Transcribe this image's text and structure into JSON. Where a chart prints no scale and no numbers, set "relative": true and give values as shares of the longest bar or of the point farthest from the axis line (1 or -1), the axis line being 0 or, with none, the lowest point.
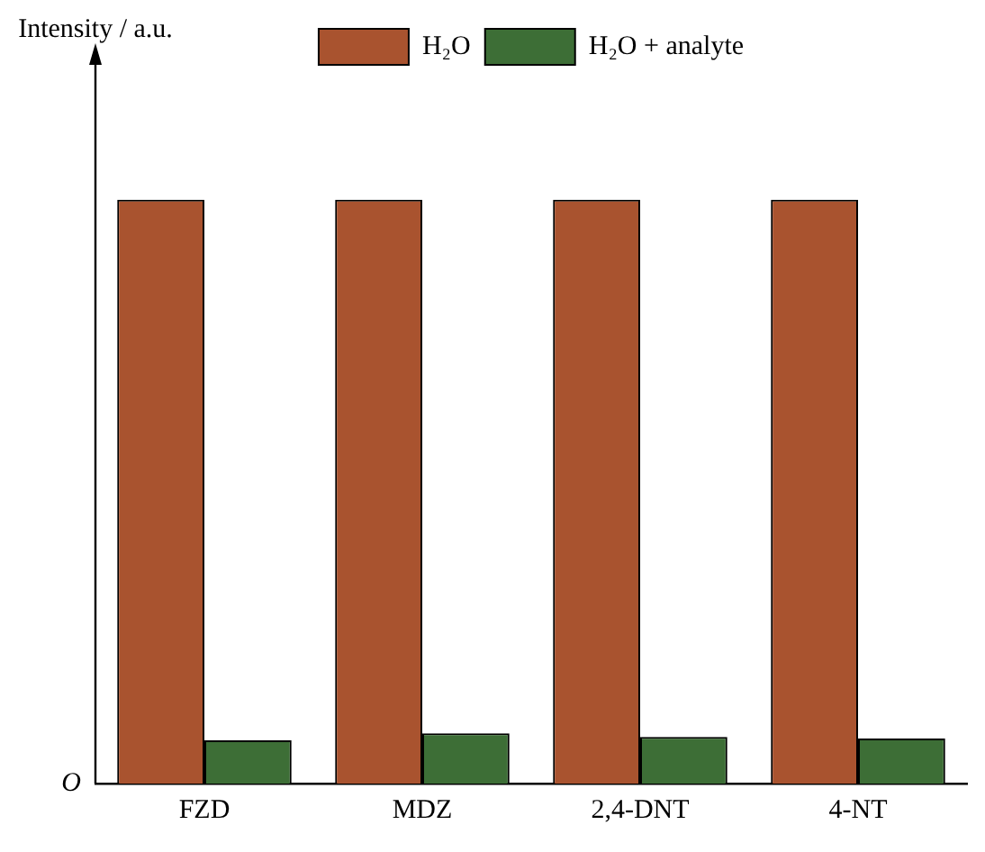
{
  "chart_data": {
    "type": "bar",
    "relative": true,
    "categories": [
      "FZD",
      "MDZ",
      "2,4-DNT",
      "4-NT"
    ],
    "series": [
      {
        "name": "H₂O",
        "color": "#a9532f",
        "values": [
          1,
          1,
          1,
          1
        ]
      },
      {
        "name": "H₂O + analyte",
        "color": "#3d6e36",
        "values": [
          0.074,
          0.086,
          0.08,
          0.077
        ]
      }
    ],
    "annotations": [
      "Intensity / a.u.",
      "O"
    ],
    "legend": "top",
    "grid": false
  }
}
